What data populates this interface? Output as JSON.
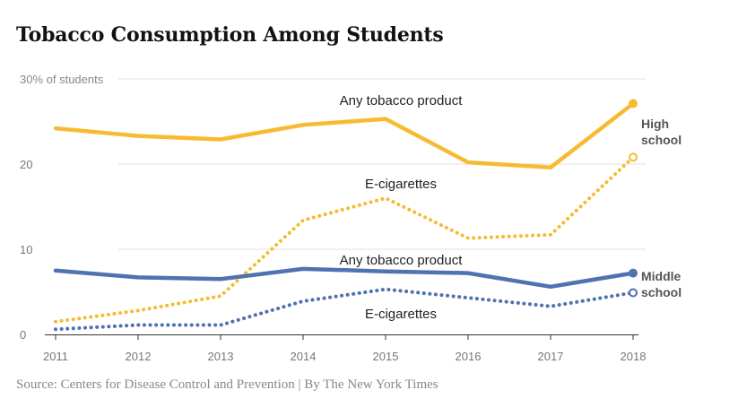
{
  "page": {
    "title": "Tobacco Consumption Among Students",
    "source": "Source: Centers for Disease Control and Prevention | By The New York Times"
  },
  "chart_data": {
    "type": "line",
    "title": "Tobacco Consumption Among Students",
    "x": [
      2011,
      2012,
      2013,
      2014,
      2015,
      2016,
      2017,
      2018
    ],
    "x_tick_labels": [
      "2011",
      "2012",
      "2013",
      "2014",
      "2015",
      "2016",
      "2017",
      "2018"
    ],
    "ylim": [
      0,
      30
    ],
    "y_ticks": [
      0,
      10,
      20,
      30
    ],
    "y_tick_labels": [
      "0",
      "10",
      "20",
      "30% of students"
    ],
    "grid": "horizontal",
    "colors": {
      "high_school": "#f6bb33",
      "middle_school": "#4f72b0"
    },
    "group_labels": {
      "high_school": [
        "High",
        "school"
      ],
      "middle_school": [
        "Middle",
        "school"
      ]
    },
    "series": [
      {
        "group": "high_school",
        "label": "Any tobacco product",
        "style": "solid",
        "end_marker": "filled",
        "values": [
          24.2,
          23.3,
          22.9,
          24.6,
          25.3,
          20.2,
          19.6,
          27.1
        ]
      },
      {
        "group": "high_school",
        "label": "E-cigarettes",
        "style": "dotted",
        "end_marker": "hollow",
        "values": [
          1.5,
          2.8,
          4.5,
          13.4,
          16.0,
          11.3,
          11.7,
          20.8
        ]
      },
      {
        "group": "middle_school",
        "label": "Any tobacco product",
        "style": "solid",
        "end_marker": "filled",
        "values": [
          7.5,
          6.7,
          6.5,
          7.7,
          7.4,
          7.2,
          5.6,
          7.2
        ]
      },
      {
        "group": "middle_school",
        "label": "E-cigarettes",
        "style": "dotted",
        "end_marker": "hollow",
        "values": [
          0.6,
          1.1,
          1.1,
          3.9,
          5.3,
          4.3,
          3.3,
          4.9
        ]
      }
    ]
  }
}
